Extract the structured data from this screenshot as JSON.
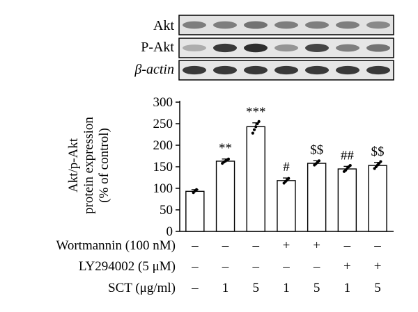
{
  "blot": {
    "labels": [
      "Akt",
      "P-Akt",
      "β-actin"
    ],
    "band_intensity": [
      [
        0.55,
        0.55,
        0.6,
        0.55,
        0.55,
        0.55,
        0.5
      ],
      [
        0.35,
        0.85,
        0.9,
        0.45,
        0.8,
        0.55,
        0.6
      ],
      [
        0.85,
        0.85,
        0.85,
        0.85,
        0.85,
        0.85,
        0.85
      ]
    ]
  },
  "chart_data": {
    "type": "bar",
    "ylabel_line1": "Akt/p-Akt",
    "ylabel_line2": "protein expression",
    "ylabel_line3": "(% of control)",
    "ylim": [
      0,
      300
    ],
    "yticks": [
      "0",
      "50",
      "100",
      "150",
      "200",
      "250",
      "300"
    ],
    "values": [
      93,
      163,
      243,
      118,
      158,
      145,
      153
    ],
    "errors": [
      4,
      5,
      9,
      6,
      6,
      6,
      7
    ],
    "points": [
      [
        90,
        94,
        97
      ],
      [
        158,
        161,
        163,
        166,
        168
      ],
      [
        228,
        236,
        243,
        250,
        255
      ],
      [
        112,
        116,
        119,
        123
      ],
      [
        154,
        157,
        160,
        164
      ],
      [
        139,
        142,
        146,
        150,
        153
      ],
      [
        146,
        150,
        154,
        158,
        162
      ]
    ],
    "significance": [
      "",
      "**",
      "***",
      "#",
      "$$",
      "##",
      "$$"
    ],
    "grid": false
  },
  "treatments": {
    "rows": [
      {
        "label": "Wortmannin (100 nM)",
        "values": [
          "–",
          "–",
          "–",
          "+",
          "+",
          "–",
          "–"
        ]
      },
      {
        "label": "LY294002 (5 μM)",
        "values": [
          "–",
          "–",
          "–",
          "–",
          "–",
          "+",
          "+"
        ]
      },
      {
        "label": "SCT (μg/ml)",
        "values": [
          "–",
          "1",
          "5",
          "1",
          "5",
          "1",
          "5"
        ]
      }
    ]
  }
}
